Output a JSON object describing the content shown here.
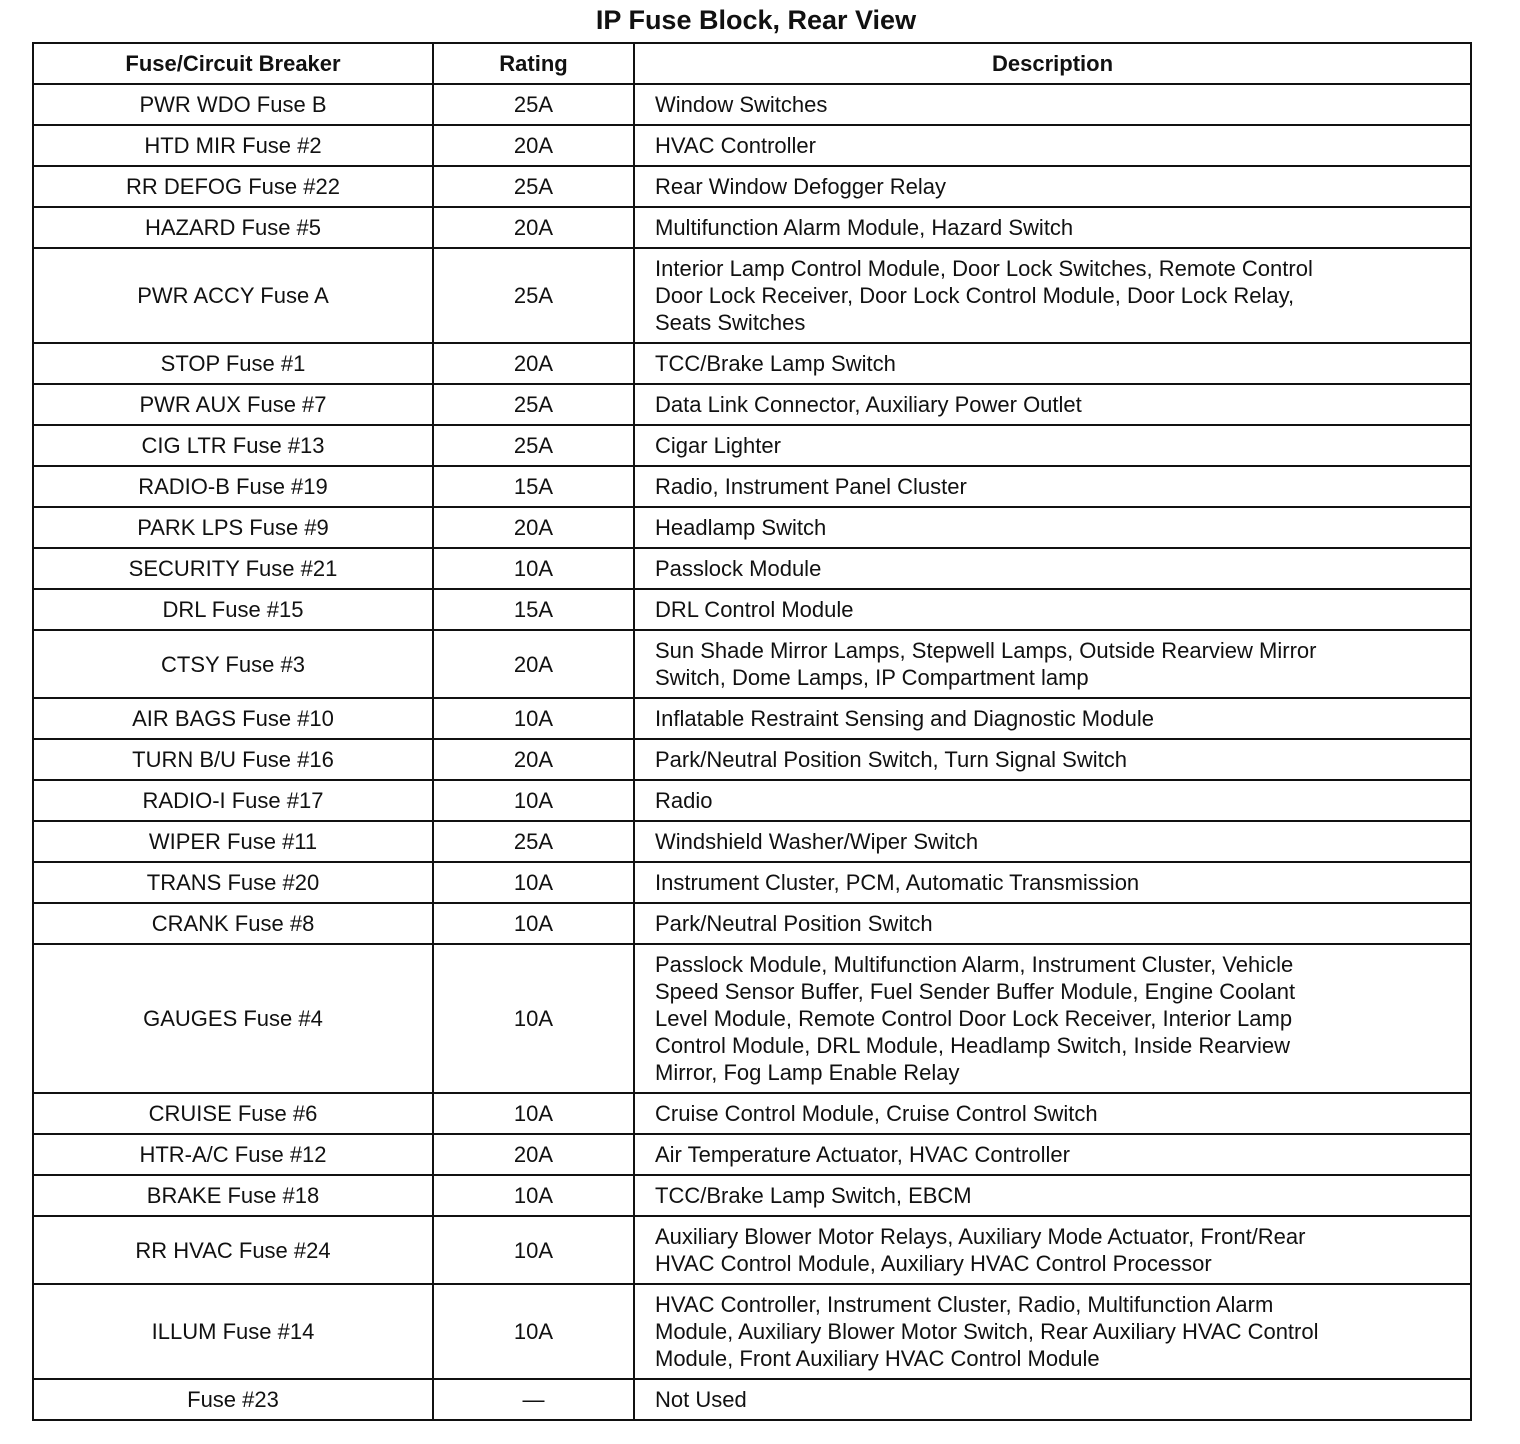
{
  "header": {
    "title": "IP Fuse Block, Rear View"
  },
  "table": {
    "columns": [
      "Fuse/Circuit Breaker",
      "Rating",
      "Description"
    ],
    "rows": [
      [
        "PWR WDO Fuse B",
        "25A",
        [
          "Window Switches"
        ]
      ],
      [
        "HTD MIR Fuse #2",
        "20A",
        [
          "HVAC Controller"
        ]
      ],
      [
        "RR DEFOG Fuse #22",
        "25A",
        [
          "Rear Window Defogger Relay"
        ]
      ],
      [
        "HAZARD Fuse #5",
        "20A",
        [
          "Multifunction Alarm Module, Hazard Switch"
        ]
      ],
      [
        "PWR ACCY Fuse A",
        "25A",
        [
          "Interior Lamp Control Module, Door Lock Switches, Remote Control",
          "Door Lock Receiver, Door Lock Control Module, Door Lock Relay,",
          "Seats Switches"
        ]
      ],
      [
        "STOP Fuse #1",
        "20A",
        [
          "TCC/Brake Lamp Switch"
        ]
      ],
      [
        "PWR AUX Fuse #7",
        "25A",
        [
          "Data Link Connector, Auxiliary Power Outlet"
        ]
      ],
      [
        "CIG LTR Fuse #13",
        "25A",
        [
          "Cigar Lighter"
        ]
      ],
      [
        "RADIO-B Fuse #19",
        "15A",
        [
          "Radio, Instrument Panel Cluster"
        ]
      ],
      [
        "PARK LPS Fuse #9",
        "20A",
        [
          "Headlamp Switch"
        ]
      ],
      [
        "SECURITY Fuse #21",
        "10A",
        [
          "Passlock Module"
        ]
      ],
      [
        "DRL Fuse #15",
        "15A",
        [
          "DRL Control Module"
        ]
      ],
      [
        "CTSY Fuse #3",
        "20A",
        [
          "Sun Shade Mirror Lamps, Stepwell Lamps, Outside Rearview Mirror",
          "Switch, Dome Lamps, IP Compartment lamp"
        ]
      ],
      [
        "AIR BAGS Fuse #10",
        "10A",
        [
          "Inflatable Restraint Sensing and Diagnostic Module"
        ]
      ],
      [
        "TURN B/U Fuse #16",
        "20A",
        [
          "Park/Neutral Position Switch, Turn Signal Switch"
        ]
      ],
      [
        "RADIO-I Fuse #17",
        "10A",
        [
          "Radio"
        ]
      ],
      [
        "WIPER Fuse #11",
        "25A",
        [
          "Windshield Washer/Wiper Switch"
        ]
      ],
      [
        "TRANS Fuse #20",
        "10A",
        [
          "Instrument Cluster, PCM, Automatic Transmission"
        ]
      ],
      [
        "CRANK Fuse #8",
        "10A",
        [
          "Park/Neutral Position Switch"
        ]
      ],
      [
        "GAUGES Fuse #4",
        "10A",
        [
          "Passlock Module, Multifunction Alarm, Instrument Cluster, Vehicle",
          "Speed Sensor Buffer, Fuel Sender Buffer Module, Engine Coolant",
          "Level Module, Remote Control Door Lock Receiver, Interior Lamp",
          "Control Module, DRL Module, Headlamp Switch, Inside Rearview",
          "Mirror, Fog Lamp Enable Relay"
        ]
      ],
      [
        "CRUISE Fuse #6",
        "10A",
        [
          "Cruise Control Module, Cruise Control Switch"
        ]
      ],
      [
        "HTR-A/C Fuse #12",
        "20A",
        [
          "Air Temperature Actuator, HVAC Controller"
        ]
      ],
      [
        "BRAKE Fuse #18",
        "10A",
        [
          "TCC/Brake Lamp Switch, EBCM"
        ]
      ],
      [
        "RR HVAC Fuse #24",
        "10A",
        [
          "Auxiliary Blower Motor Relays, Auxiliary Mode Actuator, Front/Rear",
          "HVAC Control Module, Auxiliary HVAC Control Processor"
        ]
      ],
      [
        "ILLUM Fuse #14",
        "10A",
        [
          "HVAC Controller, Instrument Cluster, Radio, Multifunction Alarm",
          "Module, Auxiliary Blower Motor Switch, Rear Auxiliary HVAC Control",
          "Module, Front Auxiliary HVAC Control Module"
        ]
      ],
      [
        "Fuse #23",
        "—",
        [
          "Not Used"
        ]
      ]
    ]
  }
}
